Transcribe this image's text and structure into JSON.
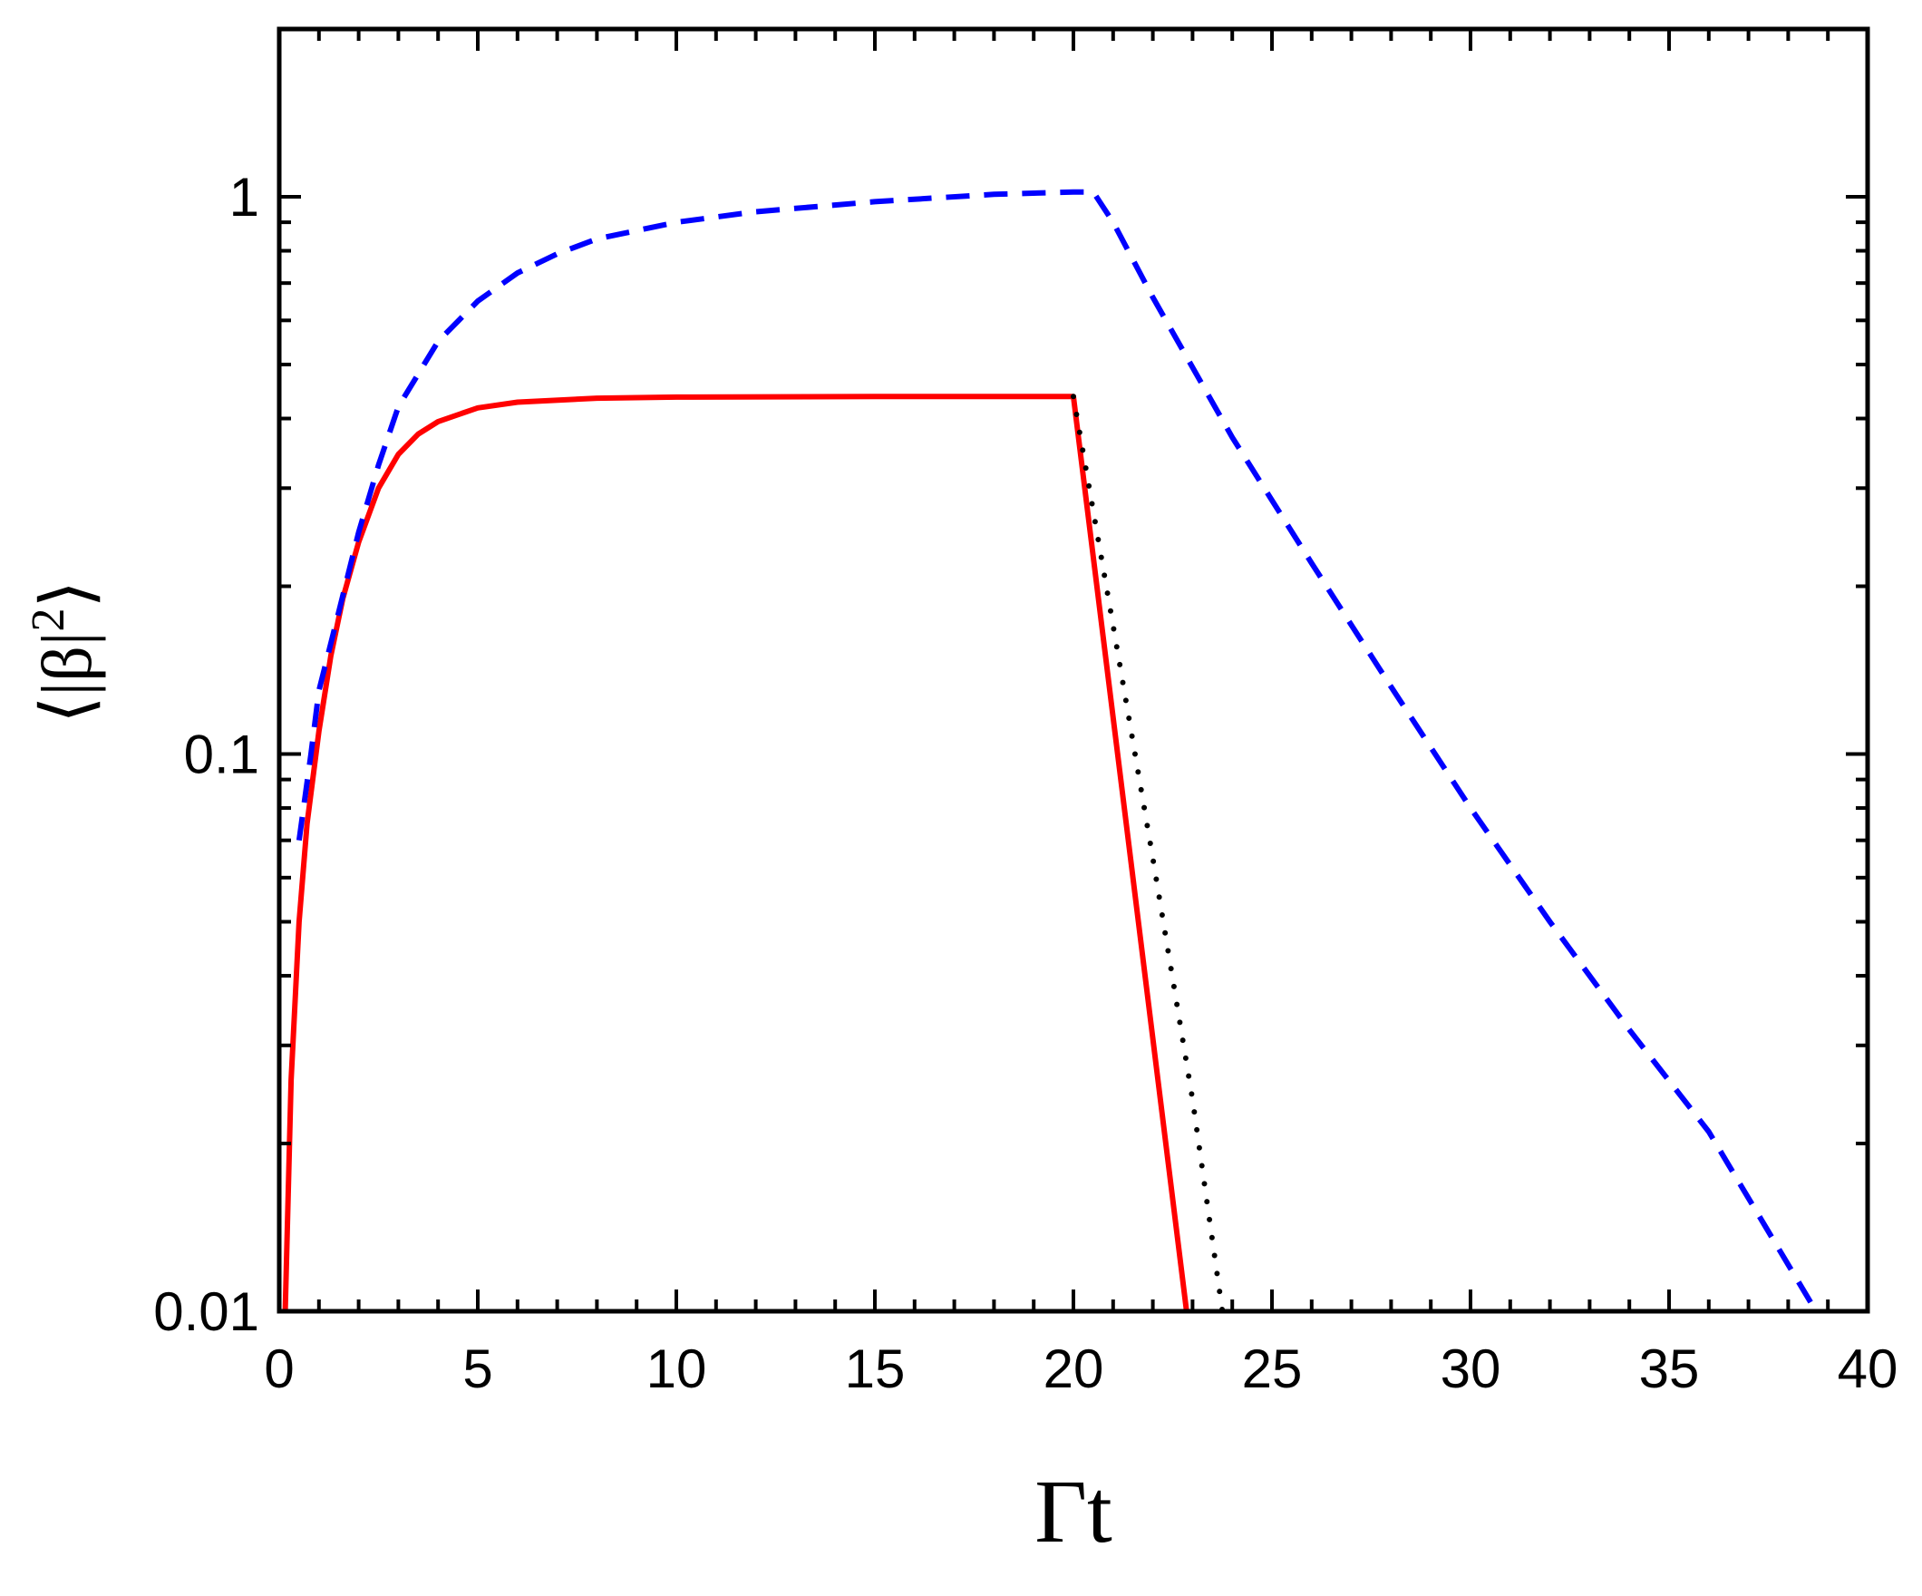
{
  "chart_data": {
    "type": "line",
    "xlabel": "Γt",
    "ylabel": {
      "prefix": "⟨|β|",
      "sup": "2",
      "suffix": "⟩"
    },
    "xlim": [
      0,
      40
    ],
    "ylim": [
      0.01,
      2
    ],
    "yscale": "log",
    "grid": false,
    "legend": "none",
    "x_ticks": [
      0,
      5,
      10,
      15,
      20,
      25,
      30,
      35,
      40
    ],
    "x_tick_labels": [
      "0",
      "5",
      "10",
      "15",
      "20",
      "25",
      "30",
      "35",
      "40"
    ],
    "y_ticks": [
      0.01,
      0.1,
      1
    ],
    "y_tick_labels": [
      "0.01",
      "0.1",
      "1"
    ],
    "series": [
      {
        "color": "#ff0000",
        "style": "solid",
        "x": [
          0.15,
          0.3,
          0.5,
          0.7,
          1.0,
          1.3,
          1.6,
          2.0,
          2.5,
          3.0,
          3.5,
          4.0,
          5.0,
          6.0,
          8.0,
          10.0,
          15.0,
          20.0,
          22.85
        ],
        "y": [
          0.01,
          0.026,
          0.05,
          0.075,
          0.11,
          0.15,
          0.19,
          0.24,
          0.3,
          0.345,
          0.375,
          0.395,
          0.418,
          0.428,
          0.435,
          0.437,
          0.438,
          0.438,
          0.01
        ]
      },
      {
        "color": "#0000ff",
        "style": "dashed",
        "x": [
          0.5,
          0.8,
          1.0,
          1.5,
          2.0,
          2.5,
          3.0,
          4.0,
          5.0,
          6.0,
          7.0,
          8.0,
          10.0,
          12.0,
          15.0,
          18.0,
          20.0,
          20.5,
          21.0,
          22.0,
          24.0,
          26.0,
          28.0,
          30.0,
          32.0,
          34.0,
          36.0,
          38.7
        ],
        "y": [
          0.07,
          0.1,
          0.13,
          0.18,
          0.25,
          0.33,
          0.42,
          0.55,
          0.65,
          0.73,
          0.79,
          0.84,
          0.9,
          0.94,
          0.98,
          1.01,
          1.02,
          1.02,
          0.9,
          0.66,
          0.37,
          0.22,
          0.132,
          0.08,
          0.05,
          0.032,
          0.021,
          0.01
        ]
      },
      {
        "color": "#000000",
        "style": "dotted",
        "x": [
          20.0,
          21.0,
          22.0,
          23.0,
          23.75
        ],
        "y": [
          0.438,
          0.17,
          0.065,
          0.024,
          0.01
        ]
      }
    ]
  }
}
